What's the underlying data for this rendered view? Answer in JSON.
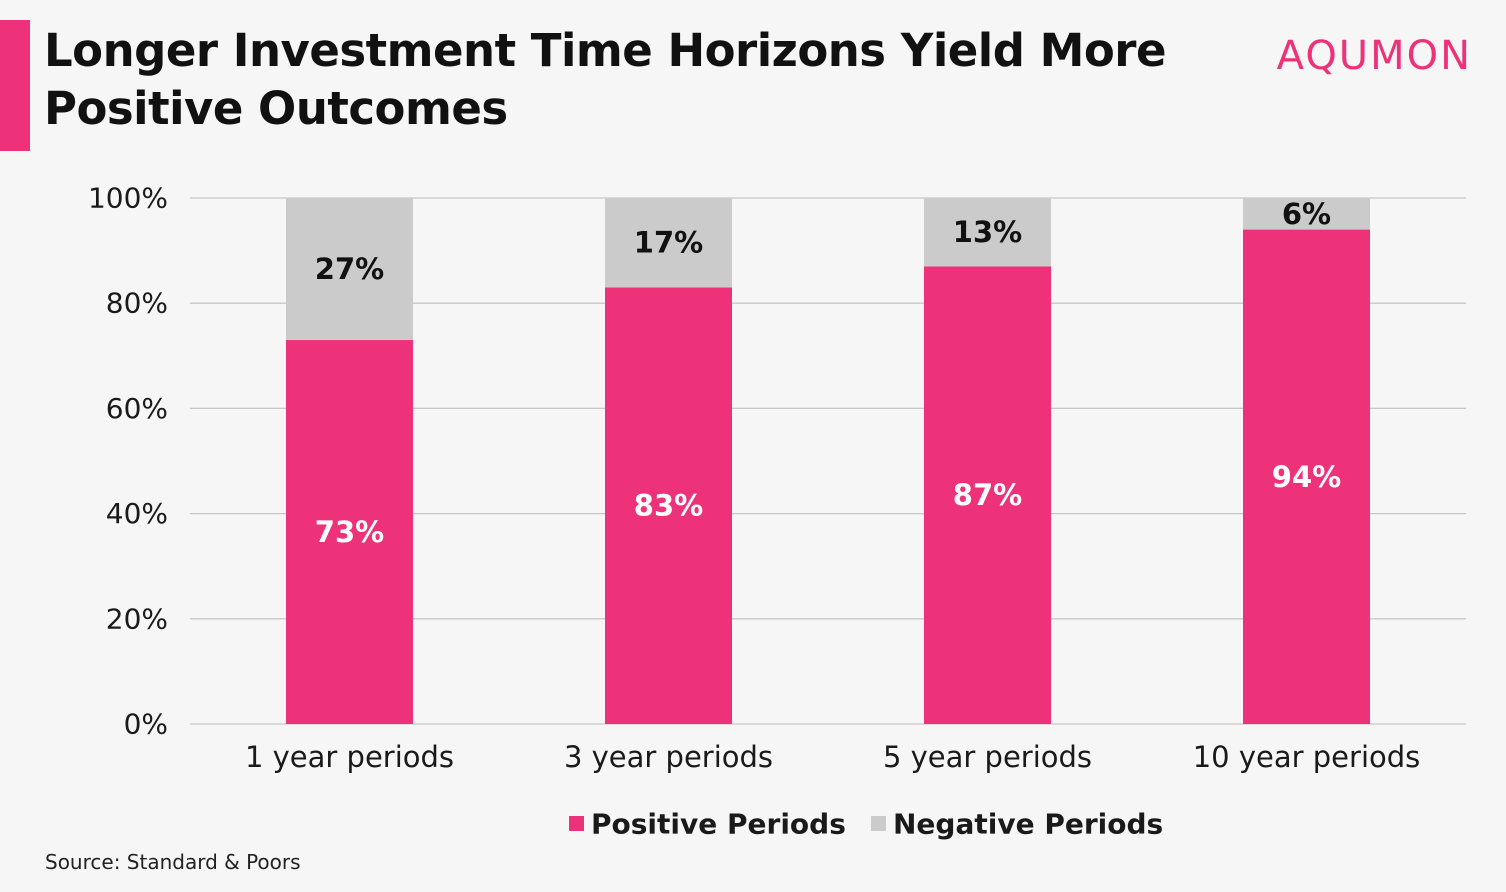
{
  "header": {
    "title": "Longer Investment Time Horizons Yield More Positive Outcomes",
    "brand": "AQUMON"
  },
  "colors": {
    "accent": "#ee327a",
    "positive": "#ee327a",
    "negative": "#cbcbcb",
    "grid": "#c8c8c8",
    "background": "#f6f6f6"
  },
  "chart_data": {
    "type": "bar",
    "stacked": true,
    "categories": [
      "1 year periods",
      "3 year periods",
      "5 year periods",
      "10 year periods"
    ],
    "series": [
      {
        "name": "Positive Periods",
        "values": [
          73,
          83,
          87,
          94
        ],
        "labels": [
          "73%",
          "83%",
          "87%",
          "94%"
        ],
        "color": "#ee327a"
      },
      {
        "name": "Negative Periods",
        "values": [
          27,
          17,
          13,
          6
        ],
        "labels": [
          "27%",
          "17%",
          "13%",
          "6%"
        ],
        "color": "#cbcbcb"
      }
    ],
    "ylim": [
      0,
      100
    ],
    "yticks": [
      "0%",
      "20%",
      "40%",
      "60%",
      "80%",
      "100%"
    ],
    "grid": true,
    "legend_position": "bottom"
  },
  "footer": {
    "source": "Source: Standard & Poors"
  }
}
